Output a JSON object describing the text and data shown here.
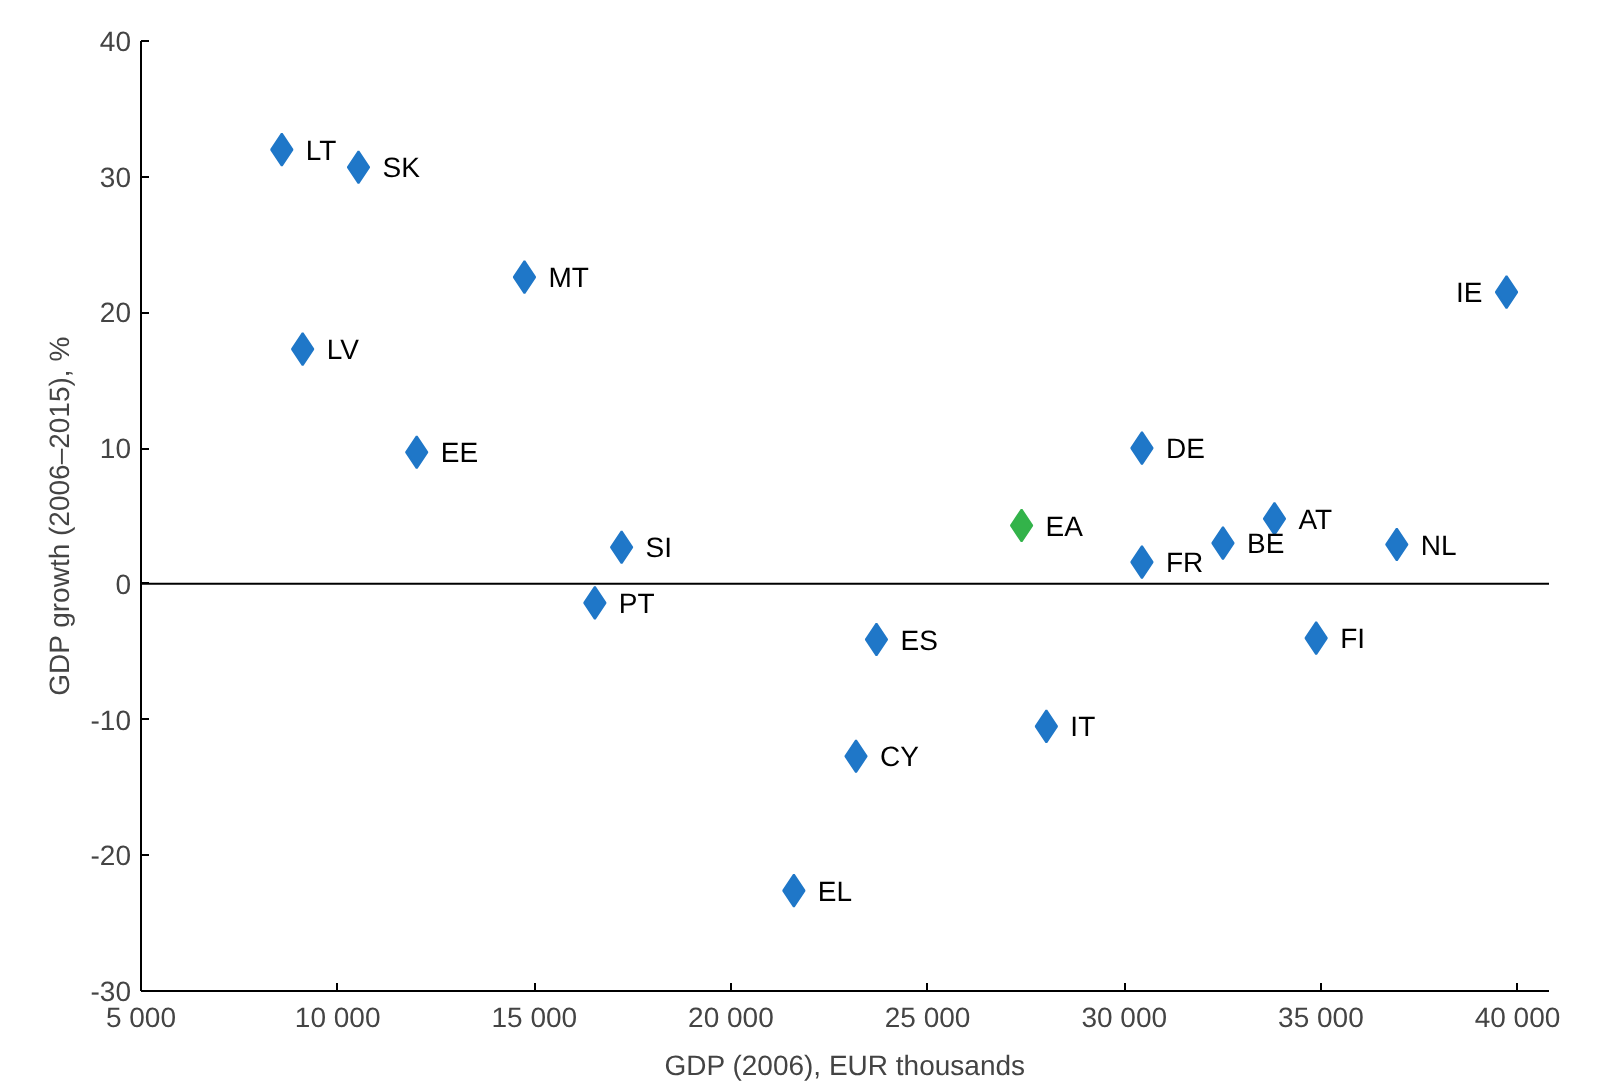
{
  "chart_data": {
    "type": "scatter",
    "xlabel": "GDP (2006), EUR thousands",
    "ylabel": "GDP growth (2006–2015), %",
    "x": [
      8580,
      10530,
      14750,
      9110,
      39720,
      12010,
      30450,
      27390,
      17220,
      32510,
      33820,
      36930,
      30450,
      16540,
      23700,
      34880,
      28020,
      23180,
      21600
    ],
    "values": [
      32.0,
      30.7,
      22.6,
      17.3,
      21.5,
      9.7,
      10.0,
      4.3,
      2.7,
      3.0,
      4.8,
      2.9,
      1.6,
      -1.4,
      -4.1,
      -4.0,
      -10.5,
      -12.7,
      -22.6
    ],
    "colors": [
      "#1f77c8",
      "#1f77c8",
      "#1f77c8",
      "#1f77c8",
      "#1f77c8",
      "#1f77c8",
      "#1f77c8",
      "#33b34a",
      "#1f77c8",
      "#1f77c8",
      "#1f77c8",
      "#1f77c8",
      "#1f77c8",
      "#1f77c8",
      "#1f77c8",
      "#1f77c8",
      "#1f77c8",
      "#1f77c8",
      "#1f77c8"
    ],
    "annotations": [
      {
        "text": "LT",
        "x": 8580,
        "y": 32.0
      },
      {
        "text": "SK",
        "x": 10530,
        "y": 30.7
      },
      {
        "text": "MT",
        "x": 14750,
        "y": 22.6
      },
      {
        "text": "LV",
        "x": 9110,
        "y": 17.3
      },
      {
        "text": "IE",
        "x": 39720,
        "y": 21.5
      },
      {
        "text": "EE",
        "x": 12010,
        "y": 9.7
      },
      {
        "text": "DE",
        "x": 30450,
        "y": 10.0
      },
      {
        "text": "EA",
        "x": 27390,
        "y": 4.3
      },
      {
        "text": "SI",
        "x": 17220,
        "y": 2.7
      },
      {
        "text": "BE",
        "x": 32510,
        "y": 3.0
      },
      {
        "text": "AT",
        "x": 33820,
        "y": 4.8
      },
      {
        "text": "NL",
        "x": 36930,
        "y": 2.9
      },
      {
        "text": "FR",
        "x": 30450,
        "y": 1.6
      },
      {
        "text": "PT",
        "x": 16540,
        "y": -1.4
      },
      {
        "text": "ES",
        "x": 23700,
        "y": -4.1
      },
      {
        "text": "FI",
        "x": 34880,
        "y": -4.0
      },
      {
        "text": "IT",
        "x": 28020,
        "y": -10.5
      },
      {
        "text": "CY",
        "x": 23180,
        "y": -12.7
      },
      {
        "text": "EL",
        "x": 21600,
        "y": -22.6
      }
    ],
    "xlim": [
      5000,
      40800
    ],
    "ylim": [
      -30,
      40
    ],
    "xticks": [
      {
        "value": 5000,
        "label": "5 000"
      },
      {
        "value": 10000,
        "label": "10 000"
      },
      {
        "value": 15000,
        "label": "15 000"
      },
      {
        "value": 20000,
        "label": "20 000"
      },
      {
        "value": 25000,
        "label": "25 000"
      },
      {
        "value": 30000,
        "label": "30 000"
      },
      {
        "value": 35000,
        "label": "35 000"
      },
      {
        "value": 40000,
        "label": "40 000"
      }
    ],
    "yticks": [
      -30,
      -20,
      -10,
      0,
      10,
      20,
      30,
      40
    ],
    "ref_lines": [
      {
        "axis": "y",
        "value": 0,
        "color": "#000000"
      }
    ],
    "grid": false,
    "marker": "diamond"
  }
}
